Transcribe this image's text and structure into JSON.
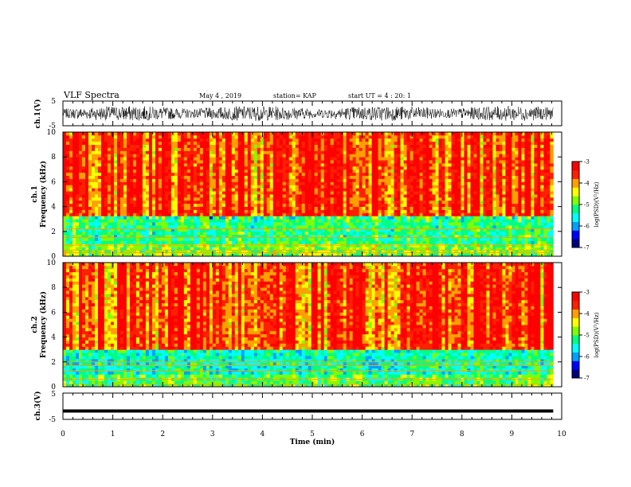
{
  "header": {
    "title": "VLF Spectra",
    "date": "May 4 , 2019",
    "station": "station= KAP",
    "start": "start UT = 4 : 20: 1"
  },
  "colors": {
    "colormap": [
      "#000080",
      "#0000ff",
      "#00a0ff",
      "#00ffff",
      "#00ff80",
      "#80ff00",
      "#ffff00",
      "#ffa000",
      "#ff2000",
      "#ff0000",
      "#ffffff"
    ]
  },
  "chart_data": [
    {
      "type": "line",
      "name": "ch1-waveform",
      "ylabel": "ch.1(V)",
      "ylim": [
        -5,
        5
      ],
      "yticks": [
        "5",
        "-5"
      ],
      "xlim": [
        0,
        10
      ],
      "x_extent": [
        0,
        9.83
      ],
      "approx_amplitude_range": [
        -3,
        3
      ]
    },
    {
      "type": "heatmap",
      "name": "ch1-spectrogram",
      "ylabel_line1": "ch.1",
      "ylabel_line2": "Frequency (kHz)",
      "ylim": [
        0,
        10
      ],
      "yticks": [
        "0",
        "2",
        "4",
        "6",
        "8",
        "10"
      ],
      "xlim": [
        0,
        10
      ],
      "x_extent": [
        0,
        9.83
      ],
      "colorbar": {
        "label": "log(PSD)(V²/Hz)",
        "range": [
          -7,
          -3
        ],
        "ticks": [
          "-3",
          "-4",
          "-5",
          "-6",
          "-7"
        ]
      },
      "bands": [
        {
          "f_range": [
            3.2,
            10
          ],
          "level": -3.6
        },
        {
          "f_range": [
            1.0,
            3.2
          ],
          "level": -5.2
        },
        {
          "f_range": [
            0,
            1.0
          ],
          "level": -4.8
        }
      ],
      "horizontal_lines_khz": [
        2.2,
        1.5,
        0.9,
        0.5,
        0.3
      ]
    },
    {
      "type": "heatmap",
      "name": "ch2-spectrogram",
      "ylabel_line1": "ch.2",
      "ylabel_line2": "Frequency (kHz)",
      "ylim": [
        0,
        10
      ],
      "yticks": [
        "0",
        "2",
        "4",
        "6",
        "8",
        "10"
      ],
      "xlim": [
        0,
        10
      ],
      "x_extent": [
        0,
        9.83
      ],
      "colorbar": {
        "label": "log(PSD)(V²/Hz)",
        "range": [
          -7,
          -3
        ],
        "ticks": [
          "-3",
          "-4",
          "-5",
          "-6",
          "-7"
        ]
      },
      "bands": [
        {
          "f_range": [
            3.0,
            10
          ],
          "level": -3.6
        },
        {
          "f_range": [
            1.0,
            3.0
          ],
          "level": -5.4
        },
        {
          "f_range": [
            0,
            1.0
          ],
          "level": -5.0
        }
      ],
      "horizontal_lines_khz": [
        2.0,
        1.7,
        1.3,
        0.6,
        0.2
      ]
    },
    {
      "type": "line",
      "name": "ch3-waveform",
      "ylabel": "ch.3(V)",
      "ylim": [
        -5,
        5
      ],
      "yticks": [
        "5",
        "-5"
      ],
      "xlim": [
        0,
        10
      ],
      "x_extent": [
        0,
        9.83
      ],
      "constant_value": -1.8
    }
  ],
  "xaxis": {
    "label": "Time (min)",
    "ticks": [
      "0",
      "1",
      "2",
      "3",
      "4",
      "5",
      "6",
      "7",
      "8",
      "9",
      "10"
    ]
  }
}
